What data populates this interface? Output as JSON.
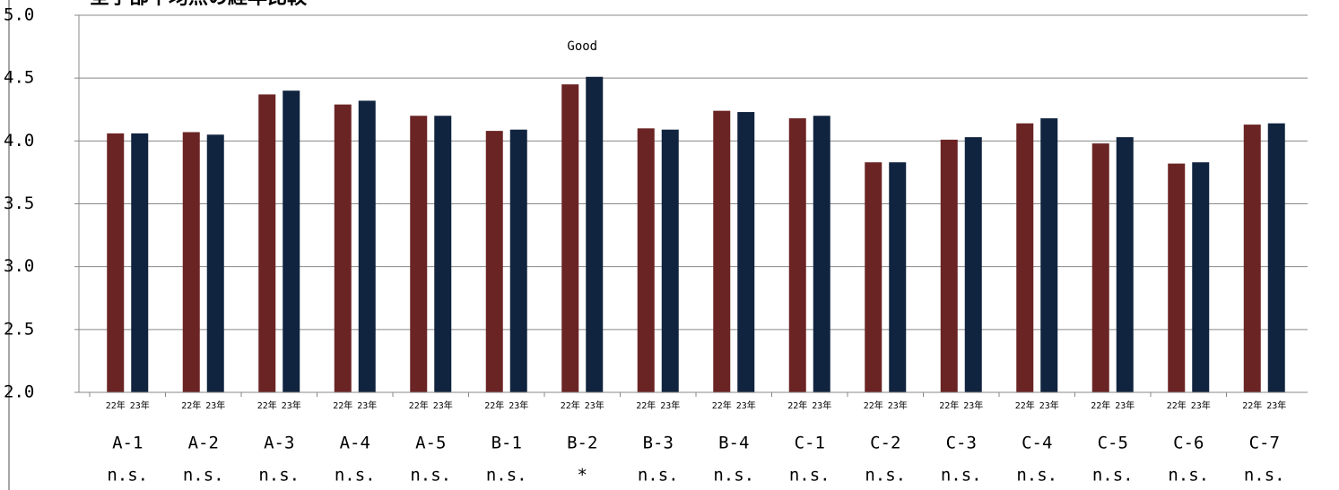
{
  "chart_data": {
    "type": "bar",
    "title": "全学部平均点の経年比較",
    "categories": [
      "A-1",
      "A-2",
      "A-3",
      "A-4",
      "A-5",
      "B-1",
      "B-2",
      "B-3",
      "B-4",
      "C-1",
      "C-2",
      "C-3",
      "C-4",
      "C-5",
      "C-6",
      "C-7"
    ],
    "significance": [
      "n.s.",
      "n.s.",
      "n.s.",
      "n.s.",
      "n.s.",
      "n.s.",
      "*",
      "n.s.",
      "n.s.",
      "n.s.",
      "n.s.",
      "n.s.",
      "n.s.",
      "n.s.",
      "n.s.",
      "n.s."
    ],
    "series": [
      {
        "name": "22年",
        "color": "#6b2424",
        "values": [
          4.06,
          4.07,
          4.37,
          4.29,
          4.2,
          4.08,
          4.45,
          4.1,
          4.24,
          4.18,
          3.83,
          4.01,
          4.14,
          3.98,
          3.82,
          4.13
        ]
      },
      {
        "name": "23年",
        "color": "#10243f",
        "values": [
          4.06,
          4.05,
          4.4,
          4.32,
          4.2,
          4.09,
          4.51,
          4.09,
          4.23,
          4.2,
          3.83,
          4.03,
          4.18,
          4.03,
          3.83,
          4.14
        ]
      }
    ],
    "annotations": [
      {
        "text": "Good",
        "category": "B-2"
      }
    ],
    "ylim": [
      2.0,
      5.0
    ],
    "yticks": [
      {
        "value": 2,
        "label": "2.0"
      },
      {
        "value": 2.5,
        "label": "2.5"
      },
      {
        "value": 3,
        "label": "3.0"
      },
      {
        "value": 3.5,
        "label": "3.5"
      },
      {
        "value": 4,
        "label": "4.0"
      },
      {
        "value": 4.5,
        "label": "4.5"
      },
      {
        "value": 5,
        "label": "5.0"
      }
    ],
    "grid": true
  }
}
